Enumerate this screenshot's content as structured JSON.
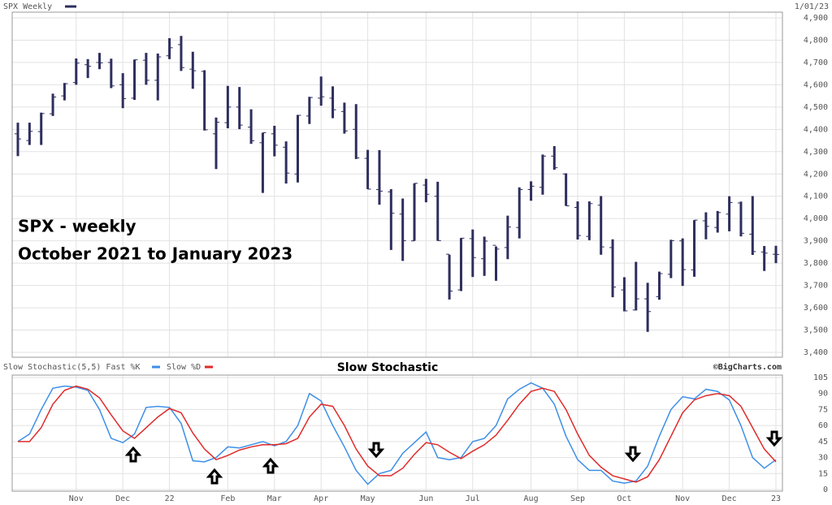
{
  "chart_data": [
    {
      "type": "ohlc",
      "legend": "SPX Weekly",
      "date": "1/01/23",
      "color": "#2e2e5e",
      "annotations": [
        "SPX - weekly",
        "October 2021 to January 2023"
      ],
      "open": [
        4380,
        4350,
        4390,
        4470,
        4550,
        4610,
        4690,
        4700,
        4700,
        4600,
        4540,
        4710,
        4620,
        4730,
        4780,
        4670,
        4660,
        4380,
        4430,
        4500,
        4410,
        4340,
        4380,
        4320,
        4200,
        4460,
        4540,
        4540,
        4480,
        4400,
        4270,
        4130,
        4120,
        4020,
        3900,
        4150,
        4100,
        3840,
        3680,
        3910,
        3820,
        3880,
        3870,
        3960,
        4130,
        4140,
        4280,
        4200,
        4050,
        3920,
        4060,
        3870,
        3680,
        3590,
        3640,
        3650,
        3750,
        3900,
        3770,
        3990,
        3960,
        4020,
        4070,
        3930,
        3850,
        3840
      ],
      "high": [
        4430,
        4430,
        4475,
        4560,
        4608,
        4718,
        4715,
        4743,
        4717,
        4652,
        4713,
        4743,
        4740,
        4809,
        4819,
        4748,
        4665,
        4453,
        4595,
        4590,
        4490,
        4385,
        4416,
        4346,
        4465,
        4546,
        4637,
        4593,
        4520,
        4513,
        4308,
        4307,
        4132,
        4090,
        4158,
        4178,
        4165,
        3838,
        3913,
        3951,
        3919,
        3875,
        4013,
        4140,
        4167,
        4287,
        4325,
        4203,
        4077,
        4077,
        4101,
        3907,
        3737,
        3806,
        3712,
        3762,
        3905,
        3911,
        3993,
        4028,
        4034,
        4100,
        4076,
        4101,
        3877,
        3878
      ],
      "low": [
        4280,
        4330,
        4330,
        4460,
        4530,
        4600,
        4630,
        4670,
        4585,
        4495,
        4532,
        4600,
        4530,
        4715,
        4662,
        4582,
        4395,
        4222,
        4405,
        4401,
        4335,
        4115,
        4279,
        4157,
        4162,
        4424,
        4506,
        4450,
        4381,
        4267,
        4132,
        4062,
        3859,
        3810,
        3900,
        4073,
        3900,
        3637,
        3675,
        3738,
        3743,
        3721,
        3818,
        3911,
        4080,
        4107,
        4219,
        4057,
        3906,
        3903,
        3838,
        3647,
        3584,
        3588,
        3492,
        3636,
        3733,
        3698,
        3739,
        3907,
        3937,
        3943,
        3920,
        3837,
        3765,
        3800
      ],
      "close": [
        4357,
        4391,
        4471,
        4545,
        4605,
        4697,
        4683,
        4698,
        4595,
        4538,
        4712,
        4620,
        4725,
        4766,
        4677,
        4663,
        4398,
        4432,
        4500,
        4419,
        4349,
        4385,
        4329,
        4204,
        4463,
        4543,
        4546,
        4488,
        4393,
        4272,
        4132,
        4123,
        4024,
        3901,
        4158,
        4109,
        3901,
        3675,
        3912,
        3825,
        3899,
        3863,
        3962,
        4130,
        4145,
        4280,
        4228,
        4057,
        3924,
        4067,
        3873,
        3693,
        3586,
        3640,
        3583,
        3753,
        3901,
        3771,
        3993,
        3965,
        4027,
        4072,
        3934,
        3852,
        3845,
        3839
      ],
      "ylim": [
        3400,
        4900
      ],
      "yticks": [
        {
          "value": 3400,
          "label": "3,400"
        },
        {
          "value": 3500,
          "label": "3,500"
        },
        {
          "value": 3600,
          "label": "3,600"
        },
        {
          "value": 3700,
          "label": "3,700"
        },
        {
          "value": 3800,
          "label": "3,800"
        },
        {
          "value": 3900,
          "label": "3,900"
        },
        {
          "value": 4000,
          "label": "4,000"
        },
        {
          "value": 4100,
          "label": "4,100"
        },
        {
          "value": 4200,
          "label": "4,200"
        },
        {
          "value": 4300,
          "label": "4,300"
        },
        {
          "value": 4400,
          "label": "4,400"
        },
        {
          "value": 4500,
          "label": "4,500"
        },
        {
          "value": 4600,
          "label": "4,600"
        },
        {
          "value": 4700,
          "label": "4,700"
        },
        {
          "value": 4800,
          "label": "4,800"
        },
        {
          "value": 4900,
          "label": "4,900"
        }
      ],
      "grid": true
    },
    {
      "type": "line",
      "title": "Slow Stochastic",
      "source": "©BigCharts.com",
      "categories": [
        null,
        null,
        null,
        null,
        null,
        "Nov",
        null,
        null,
        null,
        "Dec",
        null,
        null,
        null,
        "22",
        null,
        null,
        null,
        null,
        "Feb",
        null,
        null,
        null,
        "Mar",
        null,
        null,
        null,
        "Apr",
        null,
        null,
        null,
        "May",
        null,
        null,
        null,
        null,
        "Jun",
        null,
        null,
        null,
        "Jul",
        null,
        null,
        null,
        null,
        "Aug",
        null,
        null,
        null,
        "Sep",
        null,
        null,
        null,
        "Oct",
        null,
        null,
        null,
        null,
        "Nov",
        null,
        null,
        null,
        "Dec",
        null,
        null,
        null,
        "23"
      ],
      "series": [
        {
          "name": "Slow Stochastic(5,5) Fast %K",
          "color": "#3d8fe8",
          "values": [
            45,
            52,
            75,
            95,
            97,
            96,
            93,
            75,
            48,
            44,
            52,
            77,
            78,
            77,
            62,
            27,
            26,
            30,
            40,
            39,
            42,
            45,
            41,
            45,
            60,
            90,
            83,
            60,
            40,
            18,
            5,
            15,
            18,
            34,
            44,
            54,
            30,
            28,
            30,
            45,
            48,
            60,
            85,
            94,
            100,
            95,
            80,
            50,
            28,
            18,
            18,
            8,
            6,
            8,
            22,
            50,
            75,
            87,
            85,
            94,
            92,
            84,
            60,
            30,
            20,
            28
          ]
        },
        {
          "name": "Slow %D",
          "color": "#e02a2a",
          "values": [
            45,
            45,
            58,
            80,
            93,
            97,
            94,
            86,
            70,
            55,
            48,
            58,
            68,
            76,
            72,
            53,
            38,
            28,
            32,
            37,
            40,
            42,
            42,
            43,
            48,
            68,
            80,
            78,
            60,
            38,
            22,
            13,
            13,
            20,
            33,
            44,
            42,
            35,
            29,
            36,
            42,
            51,
            65,
            80,
            92,
            95,
            92,
            75,
            52,
            32,
            21,
            13,
            10,
            7,
            12,
            28,
            50,
            72,
            84,
            88,
            90,
            88,
            78,
            58,
            38,
            26
          ]
        }
      ],
      "ylim": [
        0,
        105
      ],
      "yticks": [
        0,
        15,
        30,
        45,
        60,
        75,
        90,
        105
      ],
      "grid": true
    }
  ]
}
